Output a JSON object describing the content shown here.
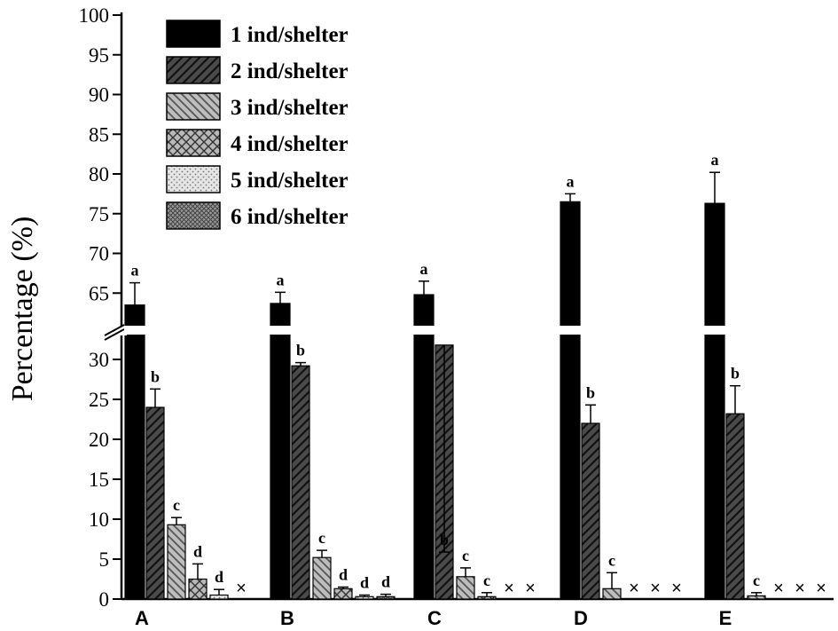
{
  "chart_data": {
    "type": "bar",
    "ylabel": "Percentage (%)",
    "xlabel": "",
    "title": "",
    "categories": [
      "A",
      "B",
      "C",
      "D",
      "E"
    ],
    "y_axis_break": {
      "lower_range": [
        0,
        32
      ],
      "upper_range": [
        60,
        100
      ]
    },
    "yticks_lower": [
      "0",
      "5",
      "10",
      "15",
      "20",
      "25",
      "30"
    ],
    "yticks_upper": [
      "65",
      "70",
      "75",
      "80",
      "85",
      "90",
      "95",
      "100"
    ],
    "legend_position": "top-left",
    "series": [
      {
        "name": "1 ind/shelter",
        "pattern": "solid",
        "values": [
          63.5,
          63.7,
          64.8,
          76.5,
          76.3
        ],
        "errors": [
          2.8,
          1.4,
          1.7,
          1.0,
          3.9
        ],
        "letters": [
          "a",
          "a",
          "a",
          "a",
          "a"
        ]
      },
      {
        "name": "2 ind/shelter",
        "pattern": "dark-diagonal",
        "values": [
          24.0,
          29.2,
          31.8,
          22.0,
          23.2
        ],
        "errors": [
          2.3,
          0.4,
          0.6,
          2.3,
          3.5
        ],
        "letters": [
          "b",
          "b",
          "b",
          "b",
          "b"
        ]
      },
      {
        "name": "3 ind/shelter",
        "pattern": "light-back-diagonal",
        "values": [
          9.3,
          5.2,
          2.8,
          1.3,
          0.4
        ],
        "errors": [
          0.9,
          0.9,
          1.1,
          2.0,
          0.4
        ],
        "letters": [
          "c",
          "c",
          "c",
          "c",
          "c"
        ]
      },
      {
        "name": "4 ind/shelter",
        "pattern": "crosshatch",
        "values": [
          2.5,
          1.3,
          0.3,
          null,
          null
        ],
        "errors": [
          1.9,
          0.2,
          0.5,
          null,
          null
        ],
        "letters": [
          "d",
          "d",
          "c",
          "",
          ""
        ],
        "absent_marks": [
          "",
          "",
          "",
          "×",
          "×"
        ]
      },
      {
        "name": "5 ind/shelter",
        "pattern": "dotted",
        "values": [
          0.5,
          0.3,
          null,
          null,
          null
        ],
        "errors": [
          0.7,
          0.2,
          null,
          null,
          null
        ],
        "letters": [
          "d",
          "d",
          "",
          "",
          ""
        ],
        "absent_marks": [
          "",
          "",
          "×",
          "×",
          "×"
        ]
      },
      {
        "name": "6 ind/shelter",
        "pattern": "fine-crosshatch",
        "values": [
          null,
          0.3,
          null,
          null,
          null
        ],
        "errors": [
          null,
          0.3,
          null,
          null,
          null
        ],
        "letters": [
          "",
          "d",
          "",
          "",
          ""
        ],
        "absent_marks": [
          "×",
          "",
          "×",
          "×",
          "×"
        ]
      }
    ]
  }
}
